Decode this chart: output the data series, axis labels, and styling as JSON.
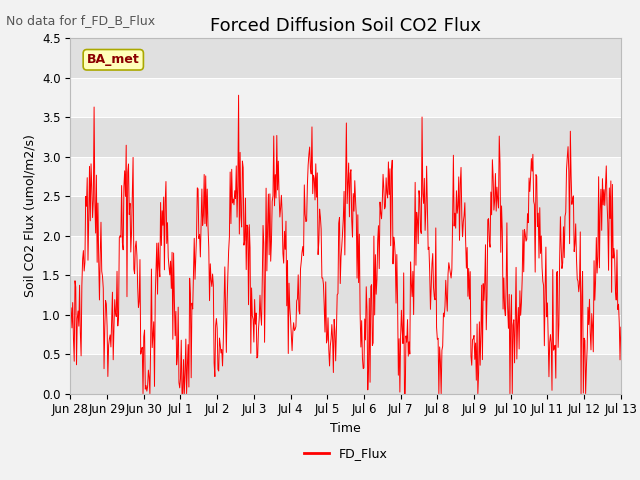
{
  "title": "Forced Diffusion Soil CO2 Flux",
  "no_data_text": "No data for f_FD_B_Flux",
  "legend_box_text": "BA_met",
  "xlabel": "Time",
  "ylabel_display": "Soil CO2 Flux (umol/m2/s)",
  "ylim": [
    0,
    4.5
  ],
  "line_color": "red",
  "line_label": "FD_Flux",
  "background_color": "#f2f2f2",
  "plot_bg_color": "#f2f2f2",
  "band_dark_color": "#e0e0e0",
  "band_light_color": "#f2f2f2",
  "title_fontsize": 13,
  "tick_fontsize": 8.5,
  "label_fontsize": 9,
  "no_data_fontsize": 9,
  "legend_fontsize": 9
}
